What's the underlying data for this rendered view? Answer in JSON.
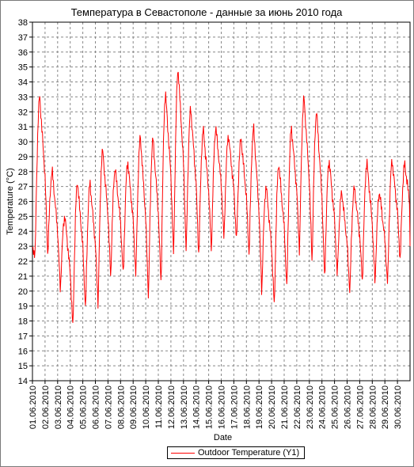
{
  "chart_data": {
    "type": "line",
    "title": "Температура в Севастополе - данные за июнь 2010 года",
    "xlabel": "Date",
    "ylabel": "Temperature (°C)",
    "ylim": [
      14,
      38
    ],
    "yticks": [
      "14",
      "15",
      "16",
      "17",
      "18",
      "19",
      "20",
      "21",
      "22",
      "23",
      "24",
      "25",
      "26",
      "27",
      "28",
      "29",
      "30",
      "31",
      "32",
      "33",
      "34",
      "35",
      "36",
      "37",
      "38"
    ],
    "categories": [
      "01.06.2010",
      "02.06.2010",
      "03.06.2010",
      "04.06.2010",
      "05.06.2010",
      "06.06.2010",
      "07.06.2010",
      "08.06.2010",
      "09.06.2010",
      "10.06.2010",
      "11.06.2010",
      "12.06.2010",
      "13.06.2010",
      "14.06.2010",
      "15.06.2010",
      "16.06.2010",
      "17.06.2010",
      "18.06.2010",
      "19.06.2010",
      "20.06.2010",
      "21.06.2010",
      "22.06.2010",
      "23.06.2010",
      "24.06.2010",
      "25.06.2010",
      "26.06.2010",
      "27.06.2010",
      "28.06.2010",
      "29.06.2010",
      "30.06.2010"
    ],
    "grid": true,
    "legend_position": "bottom",
    "series": [
      {
        "name": "Outdoor Temperature (Y1)",
        "color": "#ff0000",
        "daily_min": [
          22.5,
          22.3,
          20.0,
          17.4,
          18.6,
          19.0,
          20.8,
          20.9,
          20.9,
          19.4,
          20.3,
          22.2,
          22.4,
          22.2,
          22.6,
          23.4,
          23.2,
          22.3,
          19.8,
          18.8,
          20.0,
          22.5,
          21.8,
          20.6,
          20.9,
          19.8,
          20.5,
          20.4,
          20.3,
          21.9
        ],
        "daily_max": [
          33.0,
          28.0,
          25.0,
          27.3,
          27.2,
          29.4,
          28.2,
          28.6,
          30.3,
          30.2,
          33.2,
          34.8,
          32.2,
          30.8,
          30.9,
          30.4,
          30.2,
          30.9,
          27.0,
          28.5,
          30.9,
          32.9,
          32.0,
          28.7,
          26.6,
          26.9,
          28.6,
          26.6,
          28.7,
          28.5
        ],
        "last_value": 23.0
      }
    ]
  },
  "legend": {
    "label": "Outdoor Temperature (Y1)"
  }
}
